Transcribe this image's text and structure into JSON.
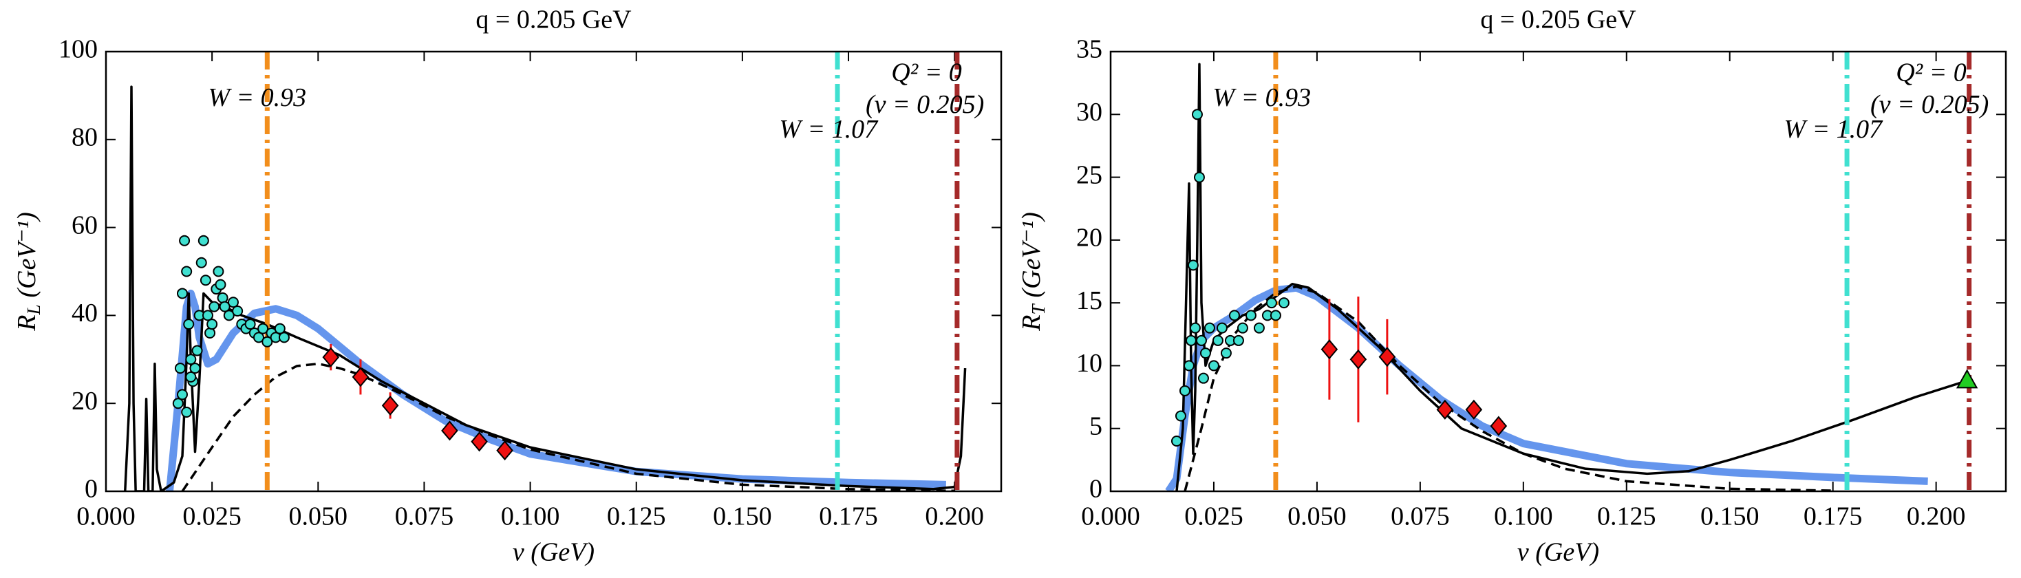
{
  "chart_data": [
    {
      "type": "line",
      "title": "q = 0.205 GeV",
      "xlabel": "ν (GeV)",
      "ylabel": {
        "symbol": "R",
        "subscript": "L",
        "unit": "(GeV⁻¹)"
      },
      "xlim": [
        0,
        0.211
      ],
      "ylim": [
        0,
        100
      ],
      "xticks": [
        {
          "value": 0,
          "label": "0.000"
        },
        {
          "value": 0.025,
          "label": "0.025"
        },
        {
          "value": 0.05,
          "label": "0.050"
        },
        {
          "value": 0.075,
          "label": "0.075"
        },
        {
          "value": 0.1,
          "label": "0.100"
        },
        {
          "value": 0.125,
          "label": "0.125"
        },
        {
          "value": 0.15,
          "label": "0.150"
        },
        {
          "value": 0.175,
          "label": "0.175"
        },
        {
          "value": 0.2,
          "label": "0.200"
        }
      ],
      "yticks": [
        0,
        20,
        40,
        60,
        80,
        100
      ],
      "annotations": [
        "W = 0.93",
        "Q² = 0",
        "(ν = 0.205)",
        "W = 1.07"
      ],
      "vlines": [
        {
          "x": 0.038,
          "color": "#f28e1c"
        },
        {
          "x": 0.1724,
          "color": "#40e0d0"
        },
        {
          "x": 0.2006,
          "color": "#a52a2a"
        }
      ],
      "series": [
        {
          "color": "#6495ed",
          "style": "thick",
          "x": [
            0.015,
            0.017,
            0.019,
            0.02,
            0.021,
            0.022,
            0.024,
            0.026,
            0.03,
            0.035,
            0.04,
            0.045,
            0.05,
            0.06,
            0.07,
            0.08,
            0.09,
            0.1,
            0.125,
            0.15,
            0.175,
            0.198
          ],
          "values": [
            0,
            20,
            42,
            45,
            42,
            35,
            29,
            30,
            36,
            40.5,
            41.5,
            40,
            37,
            29,
            22,
            16,
            12,
            8.5,
            4.5,
            2.8,
            2,
            1.5
          ]
        },
        {
          "color": "#000000",
          "style": "dashed",
          "x": [
            0.018,
            0.025,
            0.03,
            0.035,
            0.04,
            0.045,
            0.05,
            0.055,
            0.06,
            0.07,
            0.08,
            0.09,
            0.1,
            0.125,
            0.15,
            0.175,
            0.2
          ],
          "values": [
            0,
            10,
            17,
            22,
            26,
            28.5,
            29,
            28,
            26.5,
            22,
            17,
            13,
            9.5,
            4,
            1.5,
            0.5,
            0.1
          ]
        },
        {
          "color": "#000000",
          "style": "solid",
          "x": [
            0.0045,
            0.0055,
            0.006,
            0.0065,
            0.007,
            0.009,
            0.0095,
            0.01,
            0.011,
            0.0115,
            0.012,
            0.013,
            0.016,
            0.018,
            0.019,
            0.0195,
            0.02,
            0.021,
            0.022,
            0.023,
            0.025,
            0.028,
            0.032,
            0.038,
            0.045,
            0.055,
            0.065,
            0.075,
            0.085,
            0.1,
            0.125,
            0.15,
            0.175,
            0.195,
            0.2,
            0.2015,
            0.2025
          ],
          "values": [
            0,
            20,
            92,
            20,
            0,
            0,
            21,
            0,
            0,
            29,
            5,
            0,
            2,
            8,
            30,
            45,
            30,
            9,
            25,
            45,
            43,
            42,
            40,
            38,
            35,
            31,
            25,
            20,
            15,
            10,
            5,
            2.5,
            1.2,
            0.5,
            1,
            8,
            28
          ]
        },
        {
          "color": "#40e0d0",
          "marker": "circle",
          "x": [
            0.017,
            0.0175,
            0.018,
            0.0185,
            0.019,
            0.0195,
            0.02,
            0.0205,
            0.021,
            0.0215,
            0.022,
            0.0225,
            0.023,
            0.0235,
            0.024,
            0.0245,
            0.025,
            0.0255,
            0.026,
            0.0265,
            0.027,
            0.0275,
            0.028,
            0.029,
            0.03,
            0.031,
            0.032,
            0.033,
            0.034,
            0.035,
            0.036,
            0.037,
            0.038,
            0.039,
            0.04,
            0.041,
            0.042,
            0.018,
            0.019,
            0.02
          ],
          "values": [
            20,
            28,
            45,
            57,
            50,
            38,
            30,
            25,
            28,
            32,
            40,
            52,
            57,
            48,
            40,
            36,
            38,
            42,
            46,
            50,
            47,
            44,
            42,
            40,
            43,
            41,
            38,
            37,
            38,
            36,
            35,
            37,
            34,
            36,
            35,
            37,
            35,
            22,
            18,
            26
          ]
        },
        {
          "color": "#ee1111",
          "marker": "diamond",
          "x": [
            0.053,
            0.06,
            0.067,
            0.081,
            0.088,
            0.094
          ],
          "values": [
            30.5,
            26,
            19.5,
            13.8,
            11.3,
            9.3
          ],
          "errors": [
            3,
            4,
            3,
            1,
            1,
            1
          ]
        }
      ]
    },
    {
      "type": "line",
      "title": "q = 0.205 GeV",
      "xlabel": "ν (GeV)",
      "ylabel": {
        "symbol": "R",
        "subscript": "T",
        "unit": "(GeV⁻¹)"
      },
      "xlim": [
        0,
        0.2169
      ],
      "ylim": [
        0,
        35
      ],
      "xticks": [
        {
          "value": 0,
          "label": "0.000"
        },
        {
          "value": 0.025,
          "label": "0.025"
        },
        {
          "value": 0.05,
          "label": "0.050"
        },
        {
          "value": 0.075,
          "label": "0.075"
        },
        {
          "value": 0.1,
          "label": "0.100"
        },
        {
          "value": 0.125,
          "label": "0.125"
        },
        {
          "value": 0.15,
          "label": "0.150"
        },
        {
          "value": 0.175,
          "label": "0.175"
        },
        {
          "value": 0.2,
          "label": "0.200"
        }
      ],
      "yticks": [
        0,
        5,
        10,
        15,
        20,
        25,
        30,
        35
      ],
      "annotations": [
        "W = 0.93",
        "Q² = 0",
        "(ν = 0.205)",
        "W = 1.07"
      ],
      "vlines": [
        {
          "x": 0.04,
          "color": "#f28e1c"
        },
        {
          "x": 0.1784,
          "color": "#40e0d0"
        },
        {
          "x": 0.208,
          "color": "#a52a2a"
        }
      ],
      "series": [
        {
          "color": "#6495ed",
          "style": "thick",
          "x": [
            0.014,
            0.016,
            0.018,
            0.02,
            0.022,
            0.025,
            0.03,
            0.035,
            0.04,
            0.045,
            0.05,
            0.06,
            0.07,
            0.08,
            0.09,
            0.1,
            0.125,
            0.15,
            0.175,
            0.198
          ],
          "values": [
            0,
            1,
            6,
            10,
            12,
            13,
            14,
            15.2,
            16,
            16.2,
            15.5,
            13,
            10,
            7.3,
            5.2,
            3.8,
            2.2,
            1.5,
            1.1,
            0.8
          ]
        },
        {
          "color": "#000000",
          "style": "dashed",
          "x": [
            0.018,
            0.022,
            0.025,
            0.03,
            0.035,
            0.04,
            0.045,
            0.05,
            0.06,
            0.07,
            0.08,
            0.09,
            0.1,
            0.11,
            0.125,
            0.15,
            0.175
          ],
          "values": [
            0,
            5,
            9,
            12.5,
            14.5,
            15.8,
            16.3,
            15.8,
            13.5,
            10,
            7,
            4.8,
            3,
            1.8,
            0.8,
            0.2,
            0.05
          ]
        },
        {
          "color": "#000000",
          "style": "solid",
          "x": [
            0.016,
            0.0175,
            0.019,
            0.0195,
            0.02,
            0.0205,
            0.021,
            0.0215,
            0.022,
            0.023,
            0.025,
            0.028,
            0.032,
            0.036,
            0.04,
            0.044,
            0.048,
            0.055,
            0.065,
            0.075,
            0.085,
            0.1,
            0.115,
            0.13,
            0.14,
            0.15,
            0.165,
            0.18,
            0.195,
            0.2075
          ],
          "values": [
            0,
            5,
            24.5,
            10,
            3,
            8,
            20,
            34,
            15,
            10,
            12,
            13,
            14,
            14.5,
            15.5,
            16.5,
            16.2,
            14.5,
            11.5,
            8,
            5,
            3,
            1.8,
            1.4,
            1.6,
            2.5,
            4,
            5.7,
            7.5,
            8.8
          ]
        },
        {
          "color": "#40e0d0",
          "marker": "circle",
          "x": [
            0.016,
            0.017,
            0.018,
            0.019,
            0.0195,
            0.02,
            0.0205,
            0.021,
            0.0215,
            0.022,
            0.0225,
            0.023,
            0.024,
            0.025,
            0.026,
            0.027,
            0.028,
            0.029,
            0.03,
            0.031,
            0.032,
            0.034,
            0.036,
            0.038,
            0.039,
            0.04,
            0.042
          ],
          "values": [
            4,
            6,
            8,
            10,
            12,
            18,
            13,
            30,
            25,
            12,
            9,
            11,
            13,
            10,
            12,
            13,
            11,
            12,
            14,
            12,
            13,
            14,
            13,
            14,
            15,
            14,
            15
          ]
        },
        {
          "color": "#ee1111",
          "marker": "diamond",
          "x": [
            0.053,
            0.06,
            0.067,
            0.081,
            0.088,
            0.094
          ],
          "values": [
            11.3,
            10.5,
            10.7,
            6.5,
            6.5,
            5.2
          ],
          "errors": [
            4,
            5,
            3,
            0.3,
            0.3,
            0.3
          ]
        },
        {
          "color": "#22cc22",
          "marker": "triangle",
          "x": [
            0.2075
          ],
          "values": [
            8.8
          ]
        }
      ]
    }
  ]
}
